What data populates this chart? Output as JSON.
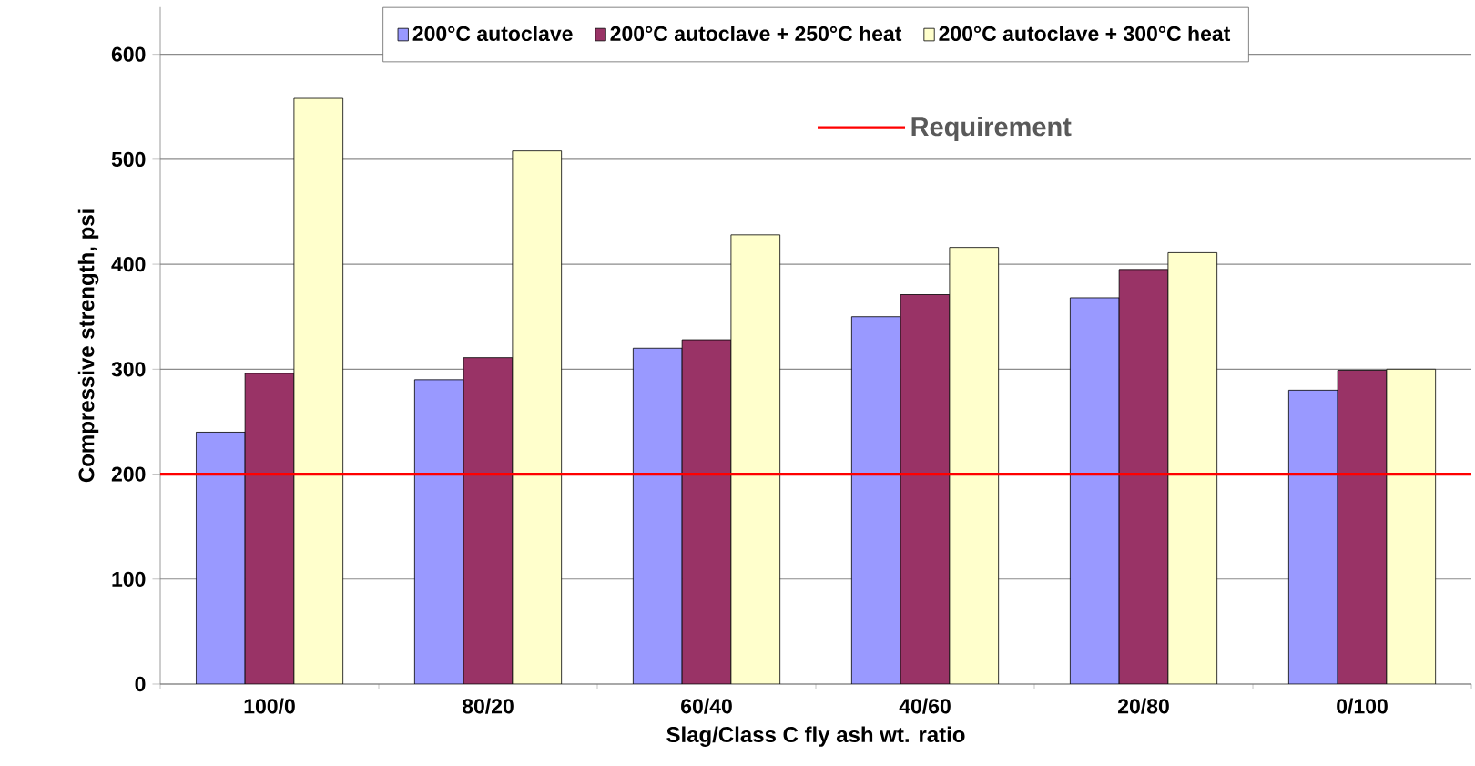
{
  "chart_data": {
    "type": "bar",
    "xlabel": "Slag/Class C fly ash wt. ratio",
    "ylabel": "Compressive strength, psi",
    "categories": [
      "100/0",
      "80/20",
      "60/40",
      "40/60",
      "20/80",
      "0/100"
    ],
    "series": [
      {
        "name": "200°C autoclave",
        "color": "#9999ff",
        "values": [
          240,
          290,
          320,
          350,
          368,
          280
        ]
      },
      {
        "name": "200°C autoclave + 250°C heat",
        "color": "#993366",
        "values": [
          296,
          311,
          328,
          371,
          395,
          299
        ]
      },
      {
        "name": "200°C autoclave + 300°C heat",
        "color": "#ffffcc",
        "values": [
          558,
          508,
          428,
          416,
          411,
          300
        ]
      }
    ],
    "ylim": [
      0,
      645
    ],
    "yticks": [
      0,
      100,
      200,
      300,
      400,
      500,
      600
    ],
    "grid": "y",
    "legend": "top",
    "ref_lines": [
      {
        "axis": "y",
        "value": 200,
        "label": "Requirement",
        "color": "#ff0000",
        "line_style": "solid"
      }
    ]
  }
}
